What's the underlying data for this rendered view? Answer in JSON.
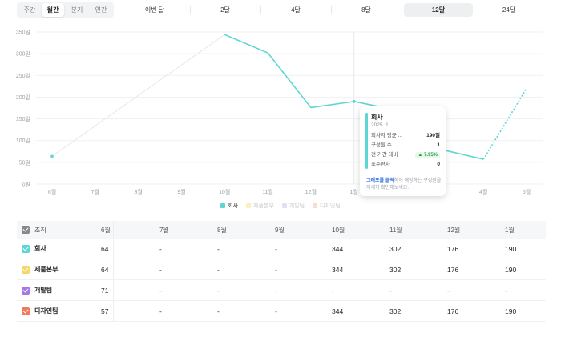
{
  "period_tabs": [
    {
      "label": "주간",
      "active": false
    },
    {
      "label": "월간",
      "active": true
    },
    {
      "label": "분기",
      "active": false
    },
    {
      "label": "연간",
      "active": false
    }
  ],
  "range_tabs": [
    {
      "label": "이번 달",
      "active": false
    },
    {
      "label": "2달",
      "active": false
    },
    {
      "label": "4달",
      "active": false
    },
    {
      "label": "8달",
      "active": false
    },
    {
      "label": "12달",
      "active": true
    },
    {
      "label": "24달",
      "active": false
    }
  ],
  "chart_data": {
    "type": "line",
    "categories": [
      "6월",
      "7월",
      "8월",
      "9월",
      "10월",
      "11월",
      "12월",
      "1월",
      "2월",
      "3월",
      "4월",
      "5월"
    ],
    "y_ticks": [
      "0일",
      "50일",
      "100일",
      "150일",
      "200일",
      "250일",
      "300일",
      "350일"
    ],
    "ylim": [
      0,
      350
    ],
    "grid": true,
    "series": [
      {
        "name": "회사",
        "color": "#5ed6d5",
        "values": [
          64,
          null,
          null,
          null,
          344,
          302,
          176,
          190,
          170,
          80,
          57,
          220
        ],
        "dashed_from_index": 10
      },
      {
        "name": "제품본부",
        "color": "#f6d66a",
        "values": [
          64,
          null,
          null,
          null,
          344,
          302,
          176,
          190,
          null,
          null,
          null,
          null
        ]
      },
      {
        "name": "개발팀",
        "color": "#a777e3",
        "values": [
          71,
          null,
          null,
          null,
          null,
          null,
          null,
          null,
          null,
          null,
          null,
          null
        ]
      },
      {
        "name": "디자인팀",
        "color": "#f07a5a",
        "values": [
          57,
          null,
          null,
          null,
          344,
          302,
          176,
          190,
          null,
          null,
          null,
          null
        ]
      }
    ],
    "hover_index": 7
  },
  "legend": [
    {
      "label": "회사",
      "color": "#5ed6d5",
      "on": true
    },
    {
      "label": "제품본부",
      "color": "#f6d66a",
      "on": false
    },
    {
      "label": "개발팀",
      "color": "#a777e3",
      "on": false
    },
    {
      "label": "디자인팀",
      "color": "#f07a5a",
      "on": false
    }
  ],
  "tooltip": {
    "title": "회사",
    "date": "2025. 1",
    "rows": [
      {
        "label": "회사자 평균 ...",
        "value": "190일"
      },
      {
        "label": "구성원 수",
        "value": "1"
      },
      {
        "label": "전 기간 대비",
        "value": "▲ 7.95%"
      },
      {
        "label": "표준편차",
        "value": "0"
      }
    ],
    "foot_highlight": "그래프를 클릭",
    "foot_text": "하여 해당하는 구성원을 자세히 확인해보세요."
  },
  "table": {
    "header_label": "조직",
    "columns": [
      "6월",
      "7월",
      "8월",
      "9월",
      "10월",
      "11월",
      "12월",
      "1월"
    ],
    "rows": [
      {
        "name": "회사",
        "color": "#5ed6d5",
        "cells": [
          "64",
          "-",
          "-",
          "-",
          "344",
          "302",
          "176",
          "190"
        ]
      },
      {
        "name": "제품본부",
        "color": "#f6d66a",
        "cells": [
          "64",
          "-",
          "-",
          "-",
          "344",
          "302",
          "176",
          "190"
        ]
      },
      {
        "name": "개발팀",
        "color": "#a777e3",
        "cells": [
          "71",
          "-",
          "-",
          "-",
          "-",
          "-",
          "-",
          "-"
        ]
      },
      {
        "name": "디자인팀",
        "color": "#f07a5a",
        "cells": [
          "57",
          "-",
          "-",
          "-",
          "344",
          "302",
          "176",
          "190"
        ]
      }
    ]
  }
}
